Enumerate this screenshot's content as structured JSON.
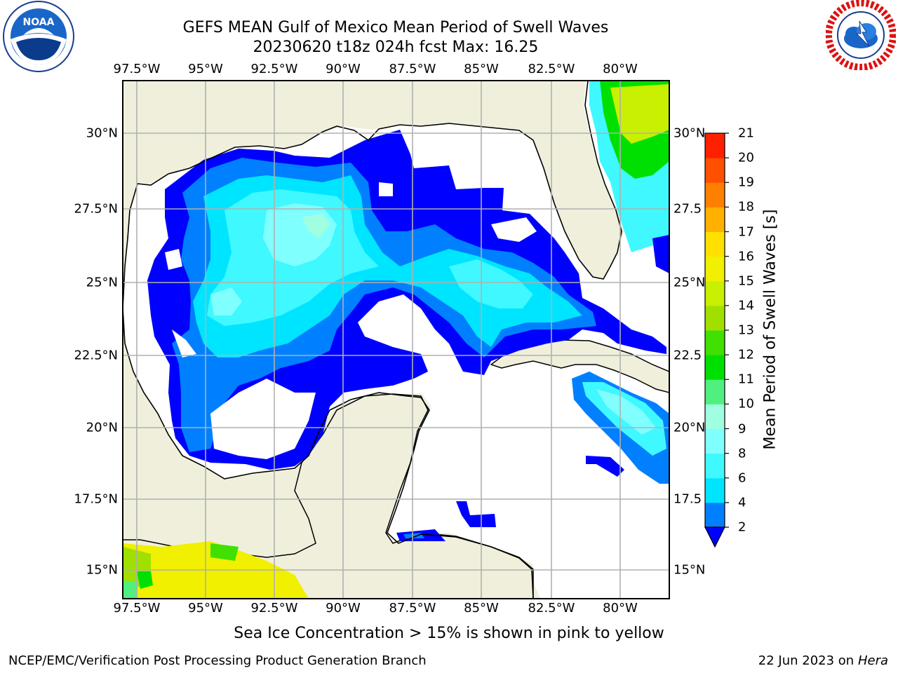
{
  "title": {
    "line1": "GEFS MEAN Gulf of Mexico Mean Period of Swell Waves",
    "line2": "20230620 t18z 024h fcst   Max: 16.25"
  },
  "logos": {
    "left": "noaa-logo",
    "right": "nws-logo"
  },
  "map": {
    "longitudes": [
      "97.5°W",
      "95°W",
      "92.5°W",
      "90°W",
      "87.5°W",
      "85°W",
      "82.5°W",
      "80°W"
    ],
    "latitudes_left": [
      "30°N",
      "27.5°N",
      "25°N",
      "22.5°N",
      "20°N",
      "17.5°N",
      "15°N"
    ],
    "latitudes_right": [
      "30°N",
      "27.5",
      "25°N",
      "22.5",
      "20°N",
      "17.5",
      "15°N"
    ],
    "lon_values": [
      -97.5,
      -95,
      -92.5,
      -90,
      -87.5,
      -85,
      -82.5,
      -80
    ],
    "lat_values": [
      30,
      27.5,
      25,
      22.5,
      20,
      17.5,
      15
    ],
    "extent": {
      "lon": [
        -98,
        -78.3
      ],
      "lat": [
        14,
        32
      ]
    },
    "colors": {
      "land": "#efefdc",
      "ocean_missing": "#ffffff",
      "grid": "#b0b0b0",
      "coast": "#000000"
    }
  },
  "colorbar": {
    "label": "Mean Period of Swell Waves [s]",
    "ticks": [
      "21",
      "20",
      "19",
      "18",
      "17",
      "16",
      "15",
      "14",
      "13",
      "12",
      "11",
      "10",
      "9",
      "8",
      "6",
      "4",
      "2"
    ],
    "colors": [
      "#0000ff",
      "#0080ff",
      "#00e5ff",
      "#40f8ff",
      "#80ffff",
      "#a0ffe0",
      "#50f080",
      "#00e000",
      "#40e000",
      "#a0e000",
      "#c8f000",
      "#f0f000",
      "#ffe000",
      "#ffb000",
      "#ff8000",
      "#ff5000",
      "#ff2000",
      "#ff0000"
    ]
  },
  "note": "Sea Ice Concentration > 15% is shown in pink to yellow",
  "credit": "NCEP/EMC/Verification Post Processing Product Generation Branch",
  "date": {
    "prefix": "22 Jun 2023 on",
    "host": "Hera"
  }
}
